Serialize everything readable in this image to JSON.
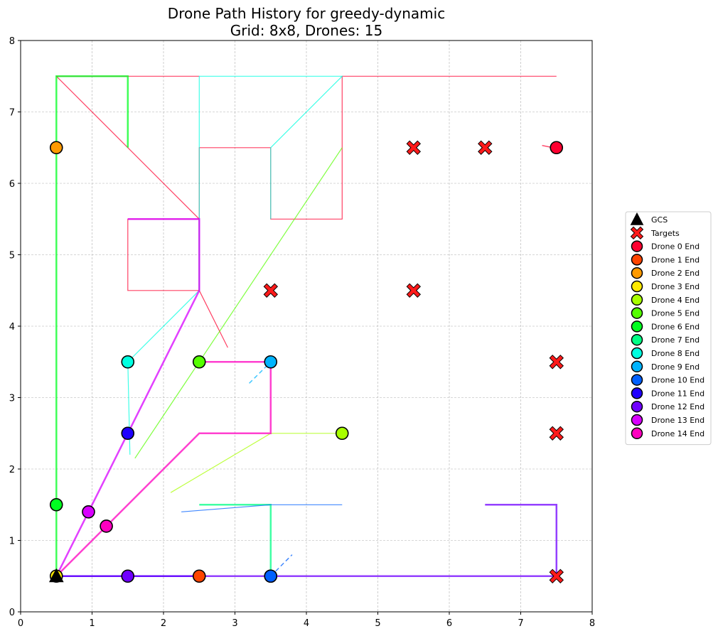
{
  "chart_data": {
    "type": "scatter",
    "title": "Drone Path History for greedy-dynamic",
    "subtitle": "Grid: 8x8, Drones: 15",
    "xlabel": "",
    "ylabel": "",
    "xlim": [
      0,
      8
    ],
    "ylim": [
      0,
      8
    ],
    "xticks": [
      "0",
      "1",
      "2",
      "3",
      "4",
      "5",
      "6",
      "7",
      "8"
    ],
    "yticks": [
      "0",
      "1",
      "2",
      "3",
      "4",
      "5",
      "6",
      "7",
      "8"
    ],
    "grid": true,
    "legend_position": "right",
    "gcs": {
      "label": "GCS",
      "x": 0.5,
      "y": 0.5,
      "color": "#000000"
    },
    "targets": {
      "label": "Targets",
      "color": "#ff1a1a",
      "points": [
        [
          5.5,
          6.5
        ],
        [
          6.5,
          6.5
        ],
        [
          3.5,
          4.5
        ],
        [
          5.5,
          4.5
        ],
        [
          7.5,
          3.5
        ],
        [
          7.5,
          2.5
        ],
        [
          7.5,
          0.5
        ]
      ]
    },
    "drones": [
      {
        "label": "Drone 0 End",
        "color": "#ff0030",
        "end": [
          7.5,
          6.5
        ],
        "paths": [
          {
            "points": [
              [
                0.5,
                7.5
              ],
              [
                2.5,
                5.5
              ],
              [
                2.5,
                4.5
              ],
              [
                2.9,
                3.7
              ]
            ],
            "width": 1.2
          },
          {
            "points": [
              [
                2.5,
                5.5
              ],
              [
                2.5,
                4.5
              ],
              [
                1.5,
                4.5
              ],
              [
                1.5,
                5.5
              ],
              [
                2.5,
                5.5
              ],
              [
                2.5,
                6.5
              ],
              [
                3.5,
                6.5
              ],
              [
                3.5,
                5.5
              ],
              [
                4.5,
                5.5
              ],
              [
                4.5,
                7.5
              ],
              [
                7.5,
                7.5
              ]
            ],
            "width": 1.2
          },
          {
            "points": [
              [
                7.3,
                6.53
              ],
              [
                7.45,
                6.5
              ]
            ],
            "width": 1.5
          },
          {
            "points": [
              [
                0.5,
                7.5
              ],
              [
                2.5,
                7.5
              ]
            ],
            "width": 1.2
          }
        ]
      },
      {
        "label": "Drone 1 End",
        "color": "#ff4500",
        "end": [
          2.5,
          0.5
        ],
        "paths": []
      },
      {
        "label": "Drone 2 End",
        "color": "#ff9a00",
        "end": [
          0.5,
          6.5
        ],
        "paths": []
      },
      {
        "label": "Drone 3 End",
        "color": "#ffea00",
        "end": [
          0.5,
          0.5
        ],
        "paths": []
      },
      {
        "label": "Drone 4 End",
        "color": "#a8ff00",
        "end": [
          4.5,
          2.5
        ],
        "paths": [
          {
            "points": [
              [
                2.1,
                1.67
              ],
              [
                3.5,
                2.5
              ],
              [
                4.5,
                2.5
              ]
            ],
            "width": 1.2
          }
        ]
      },
      {
        "label": "Drone 5 End",
        "color": "#55ff00",
        "end": [
          2.5,
          3.5
        ],
        "paths": [
          {
            "points": [
              [
                1.6,
                2.15
              ],
              [
                4.5,
                6.5
              ]
            ],
            "width": 1.2
          }
        ]
      },
      {
        "label": "Drone 6 End",
        "color": "#00ff20",
        "end": [
          0.5,
          1.5
        ],
        "paths": [
          {
            "points": [
              [
                0.5,
                0.5
              ],
              [
                0.5,
                7.5
              ],
              [
                1.5,
                7.5
              ],
              [
                1.5,
                6.5
              ]
            ],
            "width": 2.5
          }
        ]
      },
      {
        "label": "Drone 7 End",
        "color": "#00ff85",
        "end": [
          3.5,
          0.5
        ],
        "paths": [
          {
            "points": [
              [
                2.5,
                1.5
              ],
              [
                3.5,
                1.5
              ],
              [
                3.5,
                0.5
              ]
            ],
            "width": 2.5
          }
        ]
      },
      {
        "label": "Drone 8 End",
        "color": "#00ffe0",
        "end": [
          1.5,
          3.5
        ],
        "paths": [
          {
            "points": [
              [
                1.53,
                2.2
              ],
              [
                1.5,
                3.5
              ],
              [
                2.5,
                4.5
              ],
              [
                2.5,
                7.5
              ],
              [
                3.5,
                7.5
              ],
              [
                4.5,
                7.5
              ],
              [
                3.5,
                6.5
              ],
              [
                3.5,
                5.5
              ]
            ],
            "width": 1.2
          }
        ]
      },
      {
        "label": "Drone 9 End",
        "color": "#00b4ff",
        "end": [
          3.5,
          3.5
        ],
        "paths": [
          {
            "points": [
              [
                3.2,
                3.2
              ],
              [
                3.5,
                3.5
              ]
            ],
            "width": 1.5,
            "dash": "6,4"
          }
        ]
      },
      {
        "label": "Drone 10 End",
        "color": "#0060ff",
        "end": [
          3.5,
          0.5
        ],
        "paths": [
          {
            "points": [
              [
                2.25,
                1.4
              ],
              [
                3.5,
                1.5
              ],
              [
                4.5,
                1.5
              ]
            ],
            "width": 1.2
          },
          {
            "points": [
              [
                3.5,
                0.5
              ],
              [
                3.8,
                0.8
              ]
            ],
            "width": 1.5,
            "dash": "6,4"
          }
        ]
      },
      {
        "label": "Drone 11 End",
        "color": "#2000ff",
        "end": [
          1.5,
          2.5
        ],
        "paths": [
          {
            "points": [
              [
                0.5,
                0.5
              ],
              [
                2.5,
                0.5
              ]
            ],
            "width": 2.5
          }
        ]
      },
      {
        "label": "Drone 12 End",
        "color": "#7000ff",
        "end": [
          1.5,
          0.5
        ],
        "paths": [
          {
            "points": [
              [
                0.5,
                0.5
              ],
              [
                7.5,
                0.5
              ],
              [
                7.5,
                1.5
              ],
              [
                6.5,
                1.5
              ]
            ],
            "width": 2.5
          }
        ]
      },
      {
        "label": "Drone 13 End",
        "color": "#d800ff",
        "end": [
          0.95,
          1.4
        ],
        "paths": [
          {
            "points": [
              [
                0.5,
                0.5
              ],
              [
                2.5,
                4.5
              ],
              [
                2.5,
                5.5
              ],
              [
                1.5,
                5.5
              ]
            ],
            "width": 2.5
          }
        ]
      },
      {
        "label": "Drone 14 End",
        "color": "#ff00c0",
        "end": [
          1.2,
          1.2
        ],
        "paths": [
          {
            "points": [
              [
                0.5,
                0.5
              ],
              [
                2.5,
                2.5
              ],
              [
                3.5,
                2.5
              ],
              [
                3.5,
                3.5
              ],
              [
                2.5,
                3.5
              ]
            ],
            "width": 2.5
          }
        ]
      }
    ]
  }
}
